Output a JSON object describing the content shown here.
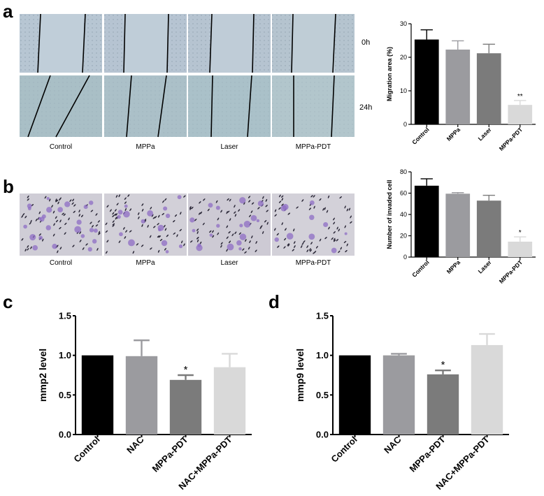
{
  "panels": {
    "a": {
      "label": "a",
      "conditions": [
        "Control",
        "MPPa",
        "Laser",
        "MPPa-PDT"
      ],
      "time_labels": [
        "0h",
        "24h"
      ]
    },
    "b": {
      "label": "b",
      "conditions": [
        "Control",
        "MPPa",
        "Laser",
        "MPPa-PDT"
      ]
    },
    "c": {
      "label": "c"
    },
    "d": {
      "label": "d"
    }
  },
  "chart_data": [
    {
      "id": "a",
      "type": "bar",
      "categories": [
        "Control",
        "MPPa",
        "Laser",
        "MPPa-PDT"
      ],
      "values": [
        25.3,
        22.3,
        21.2,
        5.8
      ],
      "errors": [
        2.9,
        2.6,
        2.7,
        1.3
      ],
      "colors": [
        "#000000",
        "#9b9b9f",
        "#7b7b7b",
        "#d9d9d9"
      ],
      "significance": [
        "",
        "",
        "",
        "**"
      ],
      "ylabel": "Migration area (%)",
      "ylim": [
        0,
        30
      ],
      "yticks": [
        0,
        10,
        20,
        30
      ]
    },
    {
      "id": "b",
      "type": "bar",
      "categories": [
        "Control",
        "MPPa",
        "Laser",
        "MPPa-PDT"
      ],
      "values": [
        67,
        59.5,
        53,
        14.5
      ],
      "errors": [
        6.5,
        1,
        5,
        4.5
      ],
      "colors": [
        "#000000",
        "#9b9b9f",
        "#7b7b7b",
        "#d9d9d9"
      ],
      "significance": [
        "",
        "",
        "",
        "*"
      ],
      "ylabel": "Number of invaded cell",
      "ylim": [
        0,
        80
      ],
      "yticks": [
        0,
        20,
        40,
        60,
        80
      ]
    },
    {
      "id": "c",
      "type": "bar",
      "categories": [
        "Control",
        "NAC",
        "MPPa-PDT",
        "NAC+MPPa-PDT"
      ],
      "values": [
        1.0,
        0.99,
        0.69,
        0.85
      ],
      "errors": [
        0.0,
        0.2,
        0.06,
        0.17
      ],
      "colors": [
        "#000000",
        "#9b9b9f",
        "#7b7b7b",
        "#d9d9d9"
      ],
      "significance": [
        "",
        "",
        "*",
        ""
      ],
      "ylabel": "mmp2 level",
      "ylim": [
        0,
        1.5
      ],
      "yticks": [
        "0.0",
        "0.5",
        "1.0",
        "1.5"
      ]
    },
    {
      "id": "d",
      "type": "bar",
      "categories": [
        "Control",
        "NAC",
        "MPPa-PDT",
        "NAC+MPPa-PDT"
      ],
      "values": [
        1.0,
        1.0,
        0.76,
        1.13
      ],
      "errors": [
        0.0,
        0.02,
        0.05,
        0.14
      ],
      "colors": [
        "#000000",
        "#9b9b9f",
        "#7b7b7b",
        "#d9d9d9"
      ],
      "significance": [
        "",
        "",
        "*",
        ""
      ],
      "ylabel": "mmp9 level",
      "ylim": [
        0,
        1.5
      ],
      "yticks": [
        "0.0",
        "0.5",
        "1.0",
        "1.5"
      ]
    }
  ]
}
